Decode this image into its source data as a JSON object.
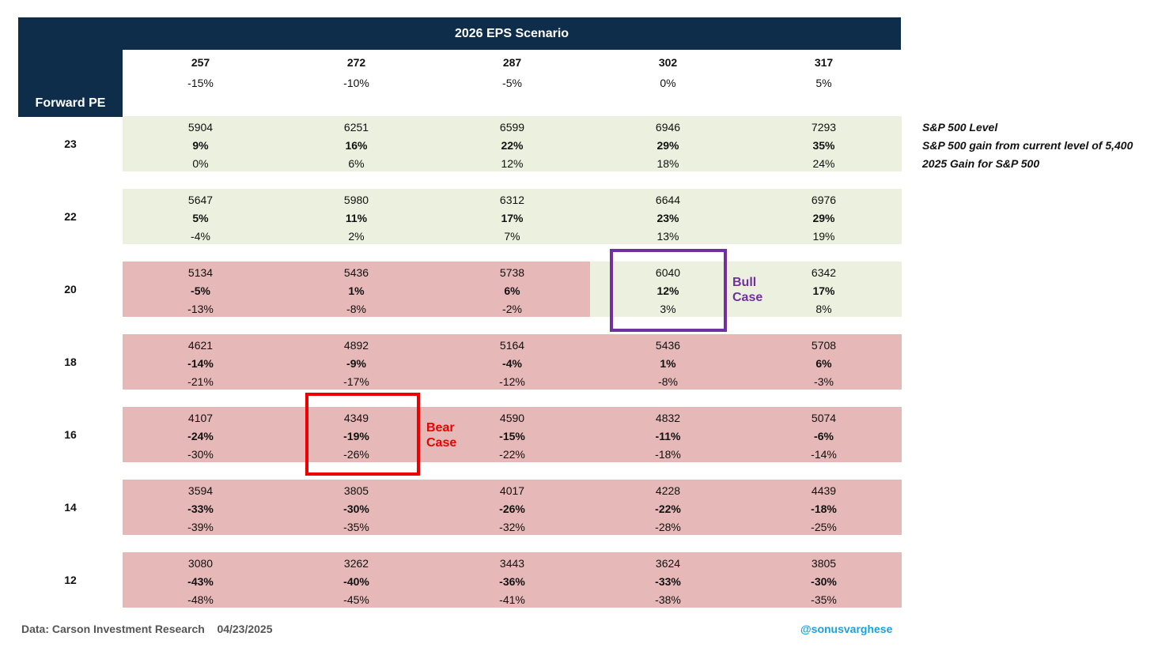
{
  "chart_data": {
    "type": "table",
    "title": "2026 EPS Scenario",
    "row_header": "Forward PE",
    "eps_scenarios": [
      {
        "eps": "257",
        "change": "-15%"
      },
      {
        "eps": "272",
        "change": "-10%"
      },
      {
        "eps": "287",
        "change": "-5%"
      },
      {
        "eps": "302",
        "change": "0%"
      },
      {
        "eps": "317",
        "change": "5%"
      }
    ],
    "rows": [
      {
        "pe": "23",
        "cells": [
          {
            "level": "5904",
            "gain": "9%",
            "ytd": "0%",
            "zone": "green"
          },
          {
            "level": "6251",
            "gain": "16%",
            "ytd": "6%",
            "zone": "green"
          },
          {
            "level": "6599",
            "gain": "22%",
            "ytd": "12%",
            "zone": "green"
          },
          {
            "level": "6946",
            "gain": "29%",
            "ytd": "18%",
            "zone": "green"
          },
          {
            "level": "7293",
            "gain": "35%",
            "ytd": "24%",
            "zone": "green"
          }
        ]
      },
      {
        "pe": "22",
        "cells": [
          {
            "level": "5647",
            "gain": "5%",
            "ytd": "-4%",
            "zone": "green"
          },
          {
            "level": "5980",
            "gain": "11%",
            "ytd": "2%",
            "zone": "green"
          },
          {
            "level": "6312",
            "gain": "17%",
            "ytd": "7%",
            "zone": "green"
          },
          {
            "level": "6644",
            "gain": "23%",
            "ytd": "13%",
            "zone": "green"
          },
          {
            "level": "6976",
            "gain": "29%",
            "ytd": "19%",
            "zone": "green"
          }
        ]
      },
      {
        "pe": "20",
        "cells": [
          {
            "level": "5134",
            "gain": "-5%",
            "ytd": "-13%",
            "zone": "red"
          },
          {
            "level": "5436",
            "gain": "1%",
            "ytd": "-8%",
            "zone": "red"
          },
          {
            "level": "5738",
            "gain": "6%",
            "ytd": "-2%",
            "zone": "red"
          },
          {
            "level": "6040",
            "gain": "12%",
            "ytd": "3%",
            "zone": "green"
          },
          {
            "level": "6342",
            "gain": "17%",
            "ytd": "8%",
            "zone": "green"
          }
        ]
      },
      {
        "pe": "18",
        "cells": [
          {
            "level": "4621",
            "gain": "-14%",
            "ytd": "-21%",
            "zone": "red"
          },
          {
            "level": "4892",
            "gain": "-9%",
            "ytd": "-17%",
            "zone": "red"
          },
          {
            "level": "5164",
            "gain": "-4%",
            "ytd": "-12%",
            "zone": "red"
          },
          {
            "level": "5436",
            "gain": "1%",
            "ytd": "-8%",
            "zone": "red"
          },
          {
            "level": "5708",
            "gain": "6%",
            "ytd": "-3%",
            "zone": "red"
          }
        ]
      },
      {
        "pe": "16",
        "cells": [
          {
            "level": "4107",
            "gain": "-24%",
            "ytd": "-30%",
            "zone": "red"
          },
          {
            "level": "4349",
            "gain": "-19%",
            "ytd": "-26%",
            "zone": "red"
          },
          {
            "level": "4590",
            "gain": "-15%",
            "ytd": "-22%",
            "zone": "red"
          },
          {
            "level": "4832",
            "gain": "-11%",
            "ytd": "-18%",
            "zone": "red"
          },
          {
            "level": "5074",
            "gain": "-6%",
            "ytd": "-14%",
            "zone": "red"
          }
        ]
      },
      {
        "pe": "14",
        "cells": [
          {
            "level": "3594",
            "gain": "-33%",
            "ytd": "-39%",
            "zone": "red"
          },
          {
            "level": "3805",
            "gain": "-30%",
            "ytd": "-35%",
            "zone": "red"
          },
          {
            "level": "4017",
            "gain": "-26%",
            "ytd": "-32%",
            "zone": "red"
          },
          {
            "level": "4228",
            "gain": "-22%",
            "ytd": "-28%",
            "zone": "red"
          },
          {
            "level": "4439",
            "gain": "-18%",
            "ytd": "-25%",
            "zone": "red"
          }
        ]
      },
      {
        "pe": "12",
        "cells": [
          {
            "level": "3080",
            "gain": "-43%",
            "ytd": "-48%",
            "zone": "red"
          },
          {
            "level": "3262",
            "gain": "-40%",
            "ytd": "-45%",
            "zone": "red"
          },
          {
            "level": "3443",
            "gain": "-36%",
            "ytd": "-41%",
            "zone": "red"
          },
          {
            "level": "3624",
            "gain": "-33%",
            "ytd": "-38%",
            "zone": "red"
          },
          {
            "level": "3805",
            "gain": "-30%",
            "ytd": "-35%",
            "zone": "red"
          }
        ]
      }
    ],
    "legend": [
      "S&P 500 Level",
      "S&P 500 gain from current level of 5,400",
      "2025 Gain for S&P 500"
    ],
    "annotations": {
      "bull": {
        "line1": "Bull",
        "line2": "Case",
        "row": 2,
        "col": 3
      },
      "bear": {
        "line1": "Bear",
        "line2": "Case",
        "row": 4,
        "col": 1
      }
    },
    "zone_colors": {
      "green": "#ebf1de",
      "red": "#e6b8b7"
    },
    "header_color": "#0d2d4a"
  },
  "footer": {
    "source": "Data: Carson Investment Research",
    "date": "04/23/2025",
    "handle": "@sonusvarghese"
  }
}
